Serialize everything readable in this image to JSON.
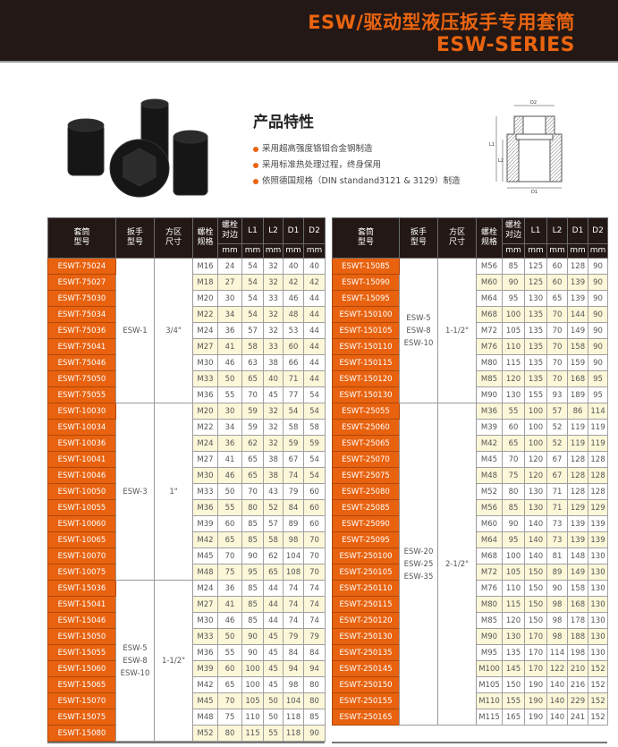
{
  "header": {
    "title_cn": "ESW/驱动型液压扳手专用套筒",
    "title_en": "ESW-SERIES"
  },
  "features": {
    "title": "产品特性",
    "items": [
      "采用超高强度铬钼合金钢制造",
      "采用标准热处理过程，终身保用",
      "依照德国规格（DIN standand3121 & 3129）制造"
    ]
  },
  "diagram": {
    "labels": [
      "D2",
      "L1",
      "L2",
      "D1"
    ]
  },
  "colors": {
    "brand": "#e8620f",
    "header_bg": "#231815",
    "alt_row": "#fcf7d8"
  },
  "table_header": {
    "model": [
      "套筒",
      "型号"
    ],
    "wrench": [
      "扳手",
      "型号"
    ],
    "drive": [
      "方区",
      "尺寸"
    ],
    "bolt": [
      "螺栓",
      "规格"
    ],
    "across": [
      "螺栓",
      "对边"
    ],
    "L1": "L1",
    "L2": "L2",
    "D1": "D1",
    "D2": "D2",
    "unit": "mm"
  },
  "tables": [
    {
      "groups": [
        {
          "wrench": [
            "ESW-1"
          ],
          "drive": "3/4\"",
          "rows": [
            [
              "ESWT-75024",
              "M16",
              "24",
              "54",
              "32",
              "40",
              "40"
            ],
            [
              "ESWT-75027",
              "M18",
              "27",
              "54",
              "32",
              "42",
              "42"
            ],
            [
              "ESWT-75030",
              "M20",
              "30",
              "54",
              "33",
              "46",
              "44"
            ],
            [
              "ESWT-75034",
              "M22",
              "34",
              "54",
              "32",
              "48",
              "44"
            ],
            [
              "ESWT-75036",
              "M24",
              "36",
              "57",
              "32",
              "53",
              "44"
            ],
            [
              "ESWT-75041",
              "M27",
              "41",
              "58",
              "33",
              "60",
              "44"
            ],
            [
              "ESWT-75046",
              "M30",
              "46",
              "63",
              "38",
              "66",
              "44"
            ],
            [
              "ESWT-75050",
              "M33",
              "50",
              "65",
              "40",
              "71",
              "44"
            ],
            [
              "ESWT-75055",
              "M36",
              "55",
              "70",
              "45",
              "77",
              "54"
            ]
          ]
        },
        {
          "wrench": [
            "ESW-3"
          ],
          "drive": "1\"",
          "rows": [
            [
              "ESWT-10030",
              "M20",
              "30",
              "59",
              "32",
              "54",
              "54"
            ],
            [
              "ESWT-10034",
              "M22",
              "34",
              "59",
              "32",
              "58",
              "58"
            ],
            [
              "ESWT-10036",
              "M24",
              "36",
              "62",
              "32",
              "59",
              "59"
            ],
            [
              "ESWT-10041",
              "M27",
              "41",
              "65",
              "38",
              "67",
              "54"
            ],
            [
              "ESWT-10046",
              "M30",
              "46",
              "65",
              "38",
              "74",
              "54"
            ],
            [
              "ESWT-10050",
              "M33",
              "50",
              "70",
              "43",
              "79",
              "60"
            ],
            [
              "ESWT-10055",
              "M36",
              "55",
              "80",
              "52",
              "84",
              "60"
            ],
            [
              "ESWT-10060",
              "M39",
              "60",
              "85",
              "57",
              "89",
              "60"
            ],
            [
              "ESWT-10065",
              "M42",
              "65",
              "85",
              "58",
              "98",
              "70"
            ],
            [
              "ESWT-10070",
              "M45",
              "70",
              "90",
              "62",
              "104",
              "70"
            ],
            [
              "ESWT-10075",
              "M48",
              "75",
              "95",
              "65",
              "108",
              "70"
            ]
          ]
        },
        {
          "wrench": [
            "ESW-5",
            "ESW-8",
            "ESW-10"
          ],
          "drive": "1-1/2\"",
          "rows": [
            [
              "ESWT-15036",
              "M24",
              "36",
              "85",
              "44",
              "74",
              "74"
            ],
            [
              "ESWT-15041",
              "M27",
              "41",
              "85",
              "44",
              "74",
              "74"
            ],
            [
              "ESWT-15046",
              "M30",
              "46",
              "85",
              "44",
              "74",
              "74"
            ],
            [
              "ESWT-15050",
              "M33",
              "50",
              "90",
              "45",
              "79",
              "79"
            ],
            [
              "ESWT-15055",
              "M36",
              "55",
              "90",
              "45",
              "84",
              "84"
            ],
            [
              "ESWT-15060",
              "M39",
              "60",
              "100",
              "45",
              "94",
              "94"
            ],
            [
              "ESWT-15065",
              "M42",
              "65",
              "100",
              "45",
              "98",
              "80"
            ],
            [
              "ESWT-15070",
              "M45",
              "70",
              "105",
              "50",
              "104",
              "80"
            ],
            [
              "ESWT-15075",
              "M48",
              "75",
              "110",
              "50",
              "118",
              "85"
            ],
            [
              "ESWT-15080",
              "M52",
              "80",
              "115",
              "55",
              "118",
              "90"
            ]
          ]
        }
      ]
    },
    {
      "groups": [
        {
          "wrench": [
            "ESW-5",
            "ESW-8",
            "ESW-10"
          ],
          "drive": "1-1/2\"",
          "rows": [
            [
              "ESWT-15085",
              "M56",
              "85",
              "125",
              "60",
              "128",
              "90"
            ],
            [
              "ESWT-15090",
              "M60",
              "90",
              "125",
              "60",
              "139",
              "90"
            ],
            [
              "ESWT-15095",
              "M64",
              "95",
              "130",
              "65",
              "139",
              "90"
            ],
            [
              "ESWT-150100",
              "M68",
              "100",
              "135",
              "70",
              "144",
              "90"
            ],
            [
              "ESWT-150105",
              "M72",
              "105",
              "135",
              "70",
              "149",
              "90"
            ],
            [
              "ESWT-150110",
              "M76",
              "110",
              "135",
              "70",
              "158",
              "90"
            ],
            [
              "ESWT-150115",
              "M80",
              "115",
              "135",
              "70",
              "159",
              "90"
            ],
            [
              "ESWT-150120",
              "M85",
              "120",
              "135",
              "70",
              "168",
              "95"
            ],
            [
              "ESWT-150130",
              "M90",
              "130",
              "155",
              "93",
              "189",
              "95"
            ]
          ]
        },
        {
          "wrench": [
            "ESW-20",
            "ESW-25",
            "ESW-35"
          ],
          "drive": "2-1/2\"",
          "rows": [
            [
              "ESWT-25055",
              "M36",
              "55",
              "100",
              "57",
              "86",
              "114"
            ],
            [
              "ESWT-25060",
              "M39",
              "60",
              "100",
              "52",
              "119",
              "119"
            ],
            [
              "ESWT-25065",
              "M42",
              "65",
              "100",
              "52",
              "119",
              "119"
            ],
            [
              "ESWT-25070",
              "M45",
              "70",
              "120",
              "67",
              "128",
              "128"
            ],
            [
              "ESWT-25075",
              "M48",
              "75",
              "120",
              "67",
              "128",
              "128"
            ],
            [
              "ESWT-25080",
              "M52",
              "80",
              "130",
              "71",
              "128",
              "128"
            ],
            [
              "ESWT-25085",
              "M56",
              "85",
              "130",
              "71",
              "129",
              "129"
            ],
            [
              "ESWT-25090",
              "M60",
              "90",
              "140",
              "73",
              "139",
              "139"
            ],
            [
              "ESWT-25095",
              "M64",
              "95",
              "140",
              "73",
              "139",
              "139"
            ],
            [
              "ESWT-250100",
              "M68",
              "100",
              "140",
              "81",
              "148",
              "130"
            ],
            [
              "ESWT-250105",
              "M72",
              "105",
              "150",
              "89",
              "149",
              "130"
            ],
            [
              "ESWT-250110",
              "M76",
              "110",
              "150",
              "90",
              "158",
              "130"
            ],
            [
              "ESWT-250115",
              "M80",
              "115",
              "150",
              "98",
              "168",
              "130"
            ],
            [
              "ESWT-250120",
              "M85",
              "120",
              "150",
              "98",
              "178",
              "130"
            ],
            [
              "ESWT-250130",
              "M90",
              "130",
              "170",
              "98",
              "188",
              "130"
            ],
            [
              "ESWT-250135",
              "M95",
              "135",
              "170",
              "114",
              "198",
              "130"
            ],
            [
              "ESWT-250145",
              "M100",
              "145",
              "170",
              "122",
              "210",
              "152"
            ],
            [
              "ESWT-250150",
              "M105",
              "150",
              "190",
              "140",
              "216",
              "152"
            ],
            [
              "ESWT-250155",
              "M110",
              "155",
              "190",
              "140",
              "229",
              "152"
            ],
            [
              "ESWT-250165",
              "M115",
              "165",
              "190",
              "140",
              "241",
              "152"
            ]
          ]
        }
      ]
    }
  ]
}
